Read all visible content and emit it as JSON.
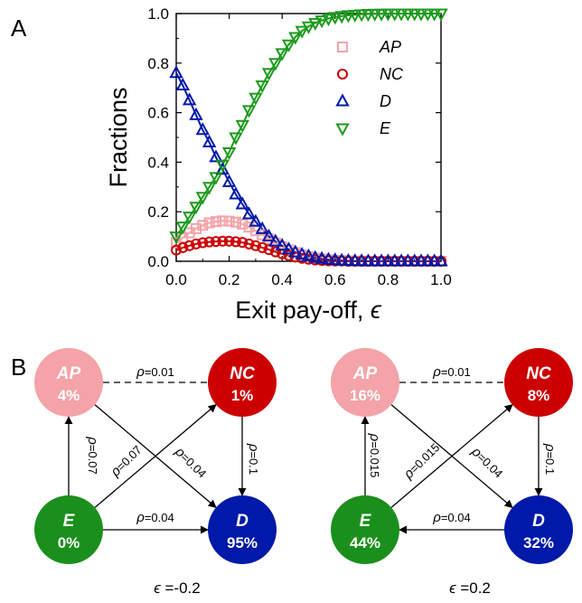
{
  "panel_a_letter": "A",
  "panel_b_letter": "B",
  "chart_data": {
    "type": "scatter",
    "xlabel": "Exit pay-off, ",
    "xlabel_symbol": "ϵ",
    "ylabel": "Fractions",
    "xlim": [
      0.0,
      1.0
    ],
    "ylim": [
      0.0,
      1.0
    ],
    "xticks": [
      "0.0",
      "0.2",
      "0.4",
      "0.6",
      "0.8",
      "1.0"
    ],
    "yticks": [
      "0.0",
      "0.2",
      "0.4",
      "0.6",
      "0.8",
      "1.0"
    ],
    "legend_position": "top-right",
    "series": [
      {
        "name": "AP",
        "marker": "square",
        "color": "#f4a3a8",
        "x": [
          0.0,
          0.025,
          0.05,
          0.075,
          0.1,
          0.125,
          0.15,
          0.175,
          0.2,
          0.225,
          0.25,
          0.275,
          0.3,
          0.325,
          0.35,
          0.375,
          0.4,
          0.425,
          0.45,
          0.475,
          0.5,
          0.525,
          0.55,
          0.575,
          0.6,
          0.625,
          0.65,
          0.675,
          0.7,
          0.725,
          0.75,
          0.775,
          0.8,
          0.825,
          0.85,
          0.875,
          0.9,
          0.925,
          0.95,
          0.975,
          1.0
        ],
        "y": [
          0.075,
          0.095,
          0.115,
          0.132,
          0.145,
          0.155,
          0.16,
          0.163,
          0.162,
          0.158,
          0.15,
          0.138,
          0.123,
          0.107,
          0.09,
          0.074,
          0.059,
          0.046,
          0.035,
          0.026,
          0.019,
          0.013,
          0.009,
          0.006,
          0.004,
          0.003,
          0.002,
          0.001,
          0.001,
          0.0,
          0.0,
          0.0,
          0.0,
          0.0,
          0.0,
          0.0,
          0.0,
          0.0,
          0.0,
          0.0,
          0.0
        ]
      },
      {
        "name": "NC",
        "marker": "circle",
        "color": "#cc0000",
        "x": [
          0.0,
          0.025,
          0.05,
          0.075,
          0.1,
          0.125,
          0.15,
          0.175,
          0.2,
          0.225,
          0.25,
          0.275,
          0.3,
          0.325,
          0.35,
          0.375,
          0.4,
          0.425,
          0.45,
          0.475,
          0.5,
          0.525,
          0.55,
          0.575,
          0.6,
          0.625,
          0.65,
          0.675,
          0.7,
          0.725,
          0.75,
          0.775,
          0.8,
          0.825,
          0.85,
          0.875,
          0.9,
          0.925,
          0.95,
          0.975,
          1.0
        ],
        "y": [
          0.045,
          0.055,
          0.063,
          0.07,
          0.075,
          0.078,
          0.08,
          0.081,
          0.081,
          0.079,
          0.076,
          0.07,
          0.063,
          0.055,
          0.047,
          0.038,
          0.03,
          0.023,
          0.017,
          0.012,
          0.008,
          0.005,
          0.003,
          0.002,
          0.001,
          0.001,
          0.0,
          0.0,
          0.0,
          0.0,
          0.0,
          0.0,
          0.0,
          0.0,
          0.0,
          0.0,
          0.0,
          0.0,
          0.0,
          0.0,
          0.0
        ]
      },
      {
        "name": "D",
        "marker": "triangle-up",
        "color": "#0019a8",
        "x": [
          0.0,
          0.025,
          0.05,
          0.075,
          0.1,
          0.125,
          0.15,
          0.175,
          0.2,
          0.225,
          0.25,
          0.275,
          0.3,
          0.325,
          0.35,
          0.375,
          0.4,
          0.425,
          0.45,
          0.475,
          0.5,
          0.525,
          0.55,
          0.575,
          0.6,
          0.625,
          0.65,
          0.675,
          0.7,
          0.725,
          0.75,
          0.775,
          0.8,
          0.825,
          0.85,
          0.875,
          0.9,
          0.925,
          0.95,
          0.975,
          1.0
        ],
        "y": [
          0.76,
          0.71,
          0.65,
          0.59,
          0.53,
          0.48,
          0.42,
          0.37,
          0.32,
          0.27,
          0.23,
          0.19,
          0.16,
          0.13,
          0.1,
          0.08,
          0.063,
          0.048,
          0.036,
          0.027,
          0.02,
          0.014,
          0.01,
          0.007,
          0.005,
          0.003,
          0.002,
          0.001,
          0.001,
          0.0,
          0.0,
          0.0,
          0.0,
          0.0,
          0.0,
          0.0,
          0.0,
          0.0,
          0.0,
          0.0,
          0.0
        ]
      },
      {
        "name": "E",
        "marker": "triangle-down",
        "color": "#1b9a1b",
        "x": [
          0.0,
          0.025,
          0.05,
          0.075,
          0.1,
          0.125,
          0.15,
          0.175,
          0.2,
          0.225,
          0.25,
          0.275,
          0.3,
          0.325,
          0.35,
          0.375,
          0.4,
          0.425,
          0.45,
          0.475,
          0.5,
          0.525,
          0.55,
          0.575,
          0.6,
          0.625,
          0.65,
          0.675,
          0.7,
          0.725,
          0.75,
          0.775,
          0.8,
          0.825,
          0.85,
          0.875,
          0.9,
          0.925,
          0.95,
          0.975,
          1.0
        ],
        "y": [
          0.1,
          0.14,
          0.18,
          0.22,
          0.26,
          0.3,
          0.34,
          0.39,
          0.44,
          0.5,
          0.55,
          0.61,
          0.66,
          0.71,
          0.76,
          0.8,
          0.84,
          0.875,
          0.905,
          0.93,
          0.948,
          0.962,
          0.972,
          0.98,
          0.986,
          0.99,
          0.993,
          0.995,
          0.997,
          0.998,
          0.999,
          0.999,
          1.0,
          1.0,
          1.0,
          1.0,
          1.0,
          1.0,
          1.0,
          1.0,
          1.0
        ]
      }
    ]
  },
  "diagrams": [
    {
      "caption_symbol": "ϵ",
      "caption_value": " =-0.2",
      "nodes": [
        {
          "id": "AP",
          "label": "AP",
          "pct": "4%",
          "color": "#f4a3a8"
        },
        {
          "id": "NC",
          "label": "NC",
          "pct": "1%",
          "color": "#cc0000"
        },
        {
          "id": "E",
          "label": "E",
          "pct": "0%",
          "color": "#1b8f1b"
        },
        {
          "id": "D",
          "label": "D",
          "pct": "95%",
          "color": "#0019a8"
        }
      ],
      "edges": [
        {
          "from": "AP",
          "to": "NC",
          "style": "dashed",
          "label": "ρ=0.01"
        },
        {
          "from": "E",
          "to": "AP",
          "style": "arrow",
          "label": "ρ=0.07"
        },
        {
          "from": "E",
          "to": "NC",
          "style": "arrow",
          "label": "ρ=0.07"
        },
        {
          "from": "AP",
          "to": "D",
          "style": "arrow",
          "label": "ρ=0.04"
        },
        {
          "from": "NC",
          "to": "D",
          "style": "arrow",
          "label": "ρ=0.1"
        },
        {
          "from": "E",
          "to": "D",
          "style": "arrow",
          "label": "ρ=0.04"
        }
      ]
    },
    {
      "caption_symbol": "ϵ",
      "caption_value": " =0.2",
      "nodes": [
        {
          "id": "AP",
          "label": "AP",
          "pct": "16%",
          "color": "#f4a3a8"
        },
        {
          "id": "NC",
          "label": "NC",
          "pct": "8%",
          "color": "#cc0000"
        },
        {
          "id": "E",
          "label": "E",
          "pct": "44%",
          "color": "#1b8f1b"
        },
        {
          "id": "D",
          "label": "D",
          "pct": "32%",
          "color": "#0019a8"
        }
      ],
      "edges": [
        {
          "from": "AP",
          "to": "NC",
          "style": "dashed",
          "label": "ρ=0.01"
        },
        {
          "from": "E",
          "to": "AP",
          "style": "arrow",
          "label": "ρ=0.015"
        },
        {
          "from": "E",
          "to": "NC",
          "style": "arrow",
          "label": "ρ=0.015"
        },
        {
          "from": "AP",
          "to": "D",
          "style": "arrow",
          "label": "ρ=0.04"
        },
        {
          "from": "NC",
          "to": "D",
          "style": "arrow",
          "label": "ρ=0.1"
        },
        {
          "from": "D",
          "to": "E",
          "style": "arrow",
          "label": "ρ=0.04"
        }
      ]
    }
  ]
}
